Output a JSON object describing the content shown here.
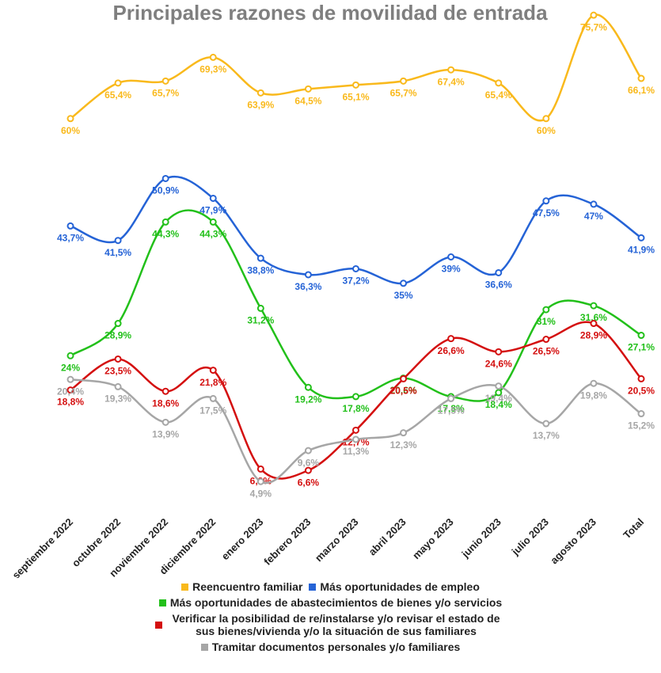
{
  "chart_data": {
    "type": "line",
    "title": "Principales razones de movilidad de entrada",
    "categories": [
      "septiembre 2022",
      "octubre 2022",
      "noviembre 2022",
      "diciembre 2022",
      "enero 2023",
      "febrero 2023",
      "marzo 2023",
      "abril 2023",
      "mayo 2023",
      "junio 2023",
      "julio 2023",
      "agosto 2023",
      "Total"
    ],
    "ylim": [
      0,
      78
    ],
    "series": [
      {
        "name": "Reencuentro familiar",
        "color": "#f9b91c",
        "values": [
          60,
          65.4,
          65.7,
          69.3,
          63.9,
          64.5,
          65.1,
          65.7,
          67.4,
          65.4,
          60,
          75.7,
          66.1
        ],
        "value_labels": [
          "60%",
          "65,4%",
          "65,7%",
          "69,3%",
          "63,9%",
          "64,5%",
          "65,1%",
          "65,7%",
          "67,4%",
          "65,4%",
          "60%",
          "75,7%",
          "66,1%"
        ]
      },
      {
        "name": "Más oportunidades de empleo",
        "color": "#2563d6",
        "values": [
          43.7,
          41.5,
          50.9,
          47.9,
          38.8,
          36.3,
          37.2,
          35,
          39,
          36.6,
          47.5,
          47,
          41.9
        ],
        "value_labels": [
          "43,7%",
          "41,5%",
          "50,9%",
          "47,9%",
          "38,8%",
          "36,3%",
          "37,2%",
          "35%",
          "39%",
          "36,6%",
          "47,5%",
          "47%",
          "41,9%"
        ]
      },
      {
        "name": "Más oportunidades de abastecimientos de bienes y/o servicios",
        "color": "#22c01a",
        "values": [
          24,
          28.9,
          44.3,
          44.3,
          31.2,
          19.2,
          17.8,
          20.6,
          17.8,
          18.4,
          31,
          31.6,
          27.1
        ],
        "value_labels": [
          "24%",
          "28,9%",
          "44,3%",
          "44,3%",
          "31,2%",
          "19,2%",
          "17,8%",
          "20,6%",
          "17,8%",
          "18,4%",
          "31%",
          "31,6%",
          "27,1%"
        ]
      },
      {
        "name": "Verificar la posibilidad de re/instalarse y/o revisar el estado de sus bienes/vivienda y/o la situación de sus familiares",
        "color": "#d40f0f",
        "values": [
          18.8,
          23.5,
          18.6,
          21.8,
          6.8,
          6.6,
          12.7,
          20.5,
          26.6,
          24.6,
          26.5,
          28.9,
          20.5
        ],
        "value_labels": [
          "18,8%",
          "23,5%",
          "18,6%",
          "21,8%",
          "6,8%",
          "6,6%",
          "12,7%",
          "20,5%",
          "26,6%",
          "24,6%",
          "26,5%",
          "28,9%",
          "20,5%"
        ]
      },
      {
        "name": "Tramitar documentos personales y/o familiares",
        "color": "#a6a6a6",
        "values": [
          20.4,
          19.3,
          13.9,
          17.5,
          4.9,
          9.6,
          11.3,
          12.3,
          17.5,
          19.4,
          13.7,
          19.8,
          15.2
        ],
        "value_labels": [
          "20,4%",
          "19,3%",
          "13,9%",
          "17,5%",
          "4,9%",
          "9,6%",
          "11,3%",
          "12,3%",
          "17,5%",
          "19,4%",
          "13,7%",
          "19,8%",
          "15,2%"
        ]
      }
    ]
  }
}
